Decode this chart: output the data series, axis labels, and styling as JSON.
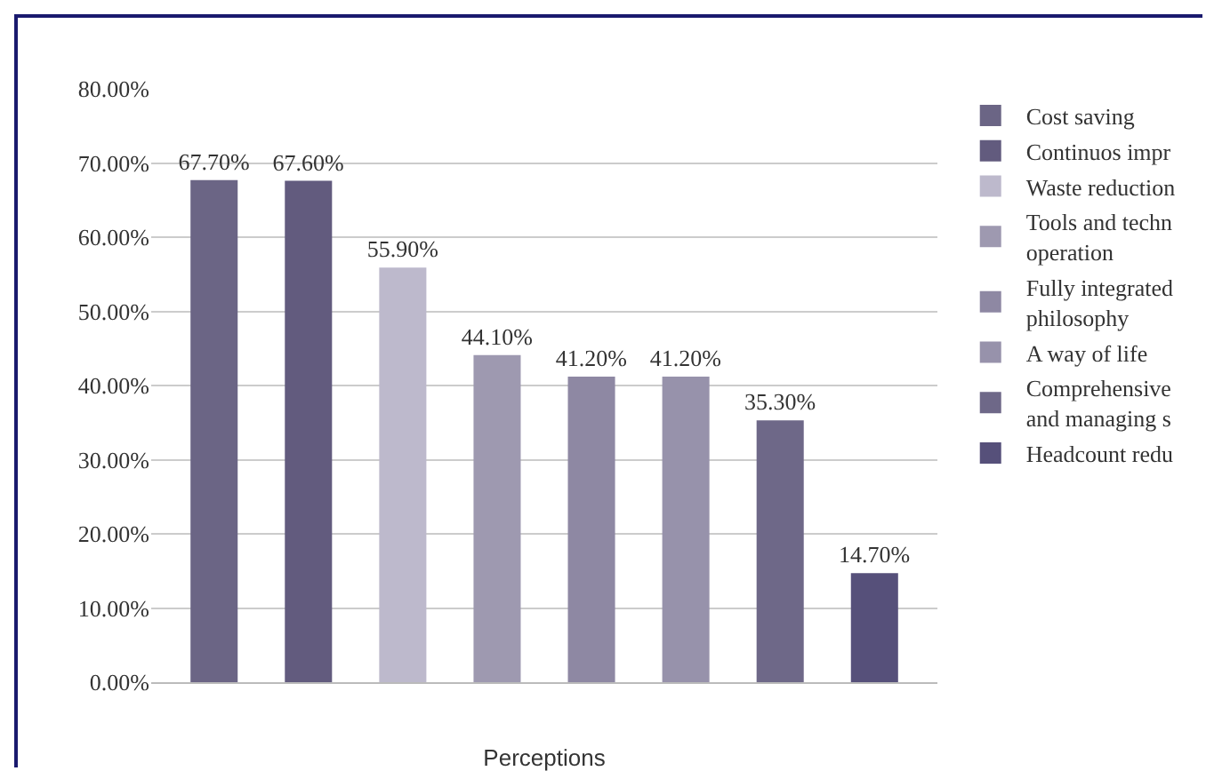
{
  "chart_data": {
    "type": "bar",
    "xlabel": "Perceptions",
    "categories": [
      null
    ],
    "series": [
      {
        "name": "Cost saving",
        "color": "#6b6585",
        "values": [
          67.7
        ],
        "value_labels": [
          "67.70%"
        ]
      },
      {
        "name": "Continuos impr",
        "color": "#625b7e",
        "values": [
          67.6
        ],
        "value_labels": [
          "67.60%"
        ]
      },
      {
        "name": "Waste reduction",
        "color": "#bdb9cc",
        "values": [
          55.9
        ],
        "value_labels": [
          "55.90%"
        ]
      },
      {
        "name": "Tools and techn\noperation",
        "color": "#9e99b0",
        "values": [
          44.1
        ],
        "value_labels": [
          "44.10%"
        ]
      },
      {
        "name": "Fully integrated\nphilosophy",
        "color": "#8e88a3",
        "values": [
          41.2
        ],
        "value_labels": [
          "41.20%"
        ]
      },
      {
        "name": "A way of life",
        "color": "#9792ab",
        "values": [
          41.2
        ],
        "value_labels": [
          "41.20%"
        ]
      },
      {
        "name": "Comprehensive\nand managing s",
        "color": "#6e6888",
        "values": [
          35.3
        ],
        "value_labels": [
          "35.30%"
        ]
      },
      {
        "name": "Headcount redu",
        "color": "#56507a",
        "values": [
          14.7
        ],
        "value_labels": [
          "14.70%"
        ]
      }
    ],
    "ylim": [
      0,
      80
    ],
    "yticks": [
      {
        "value": 0,
        "label": "0.00%"
      },
      {
        "value": 10,
        "label": "10.00%"
      },
      {
        "value": 20,
        "label": "20.00%"
      },
      {
        "value": 30,
        "label": "30.00%"
      },
      {
        "value": 40,
        "label": "40.00%"
      },
      {
        "value": 50,
        "label": "50.00%"
      },
      {
        "value": 60,
        "label": "60.00%"
      },
      {
        "value": 70,
        "label": "70.00%"
      },
      {
        "value": 80,
        "label": "80.00%"
      }
    ],
    "grid": "y",
    "legend": "right"
  }
}
